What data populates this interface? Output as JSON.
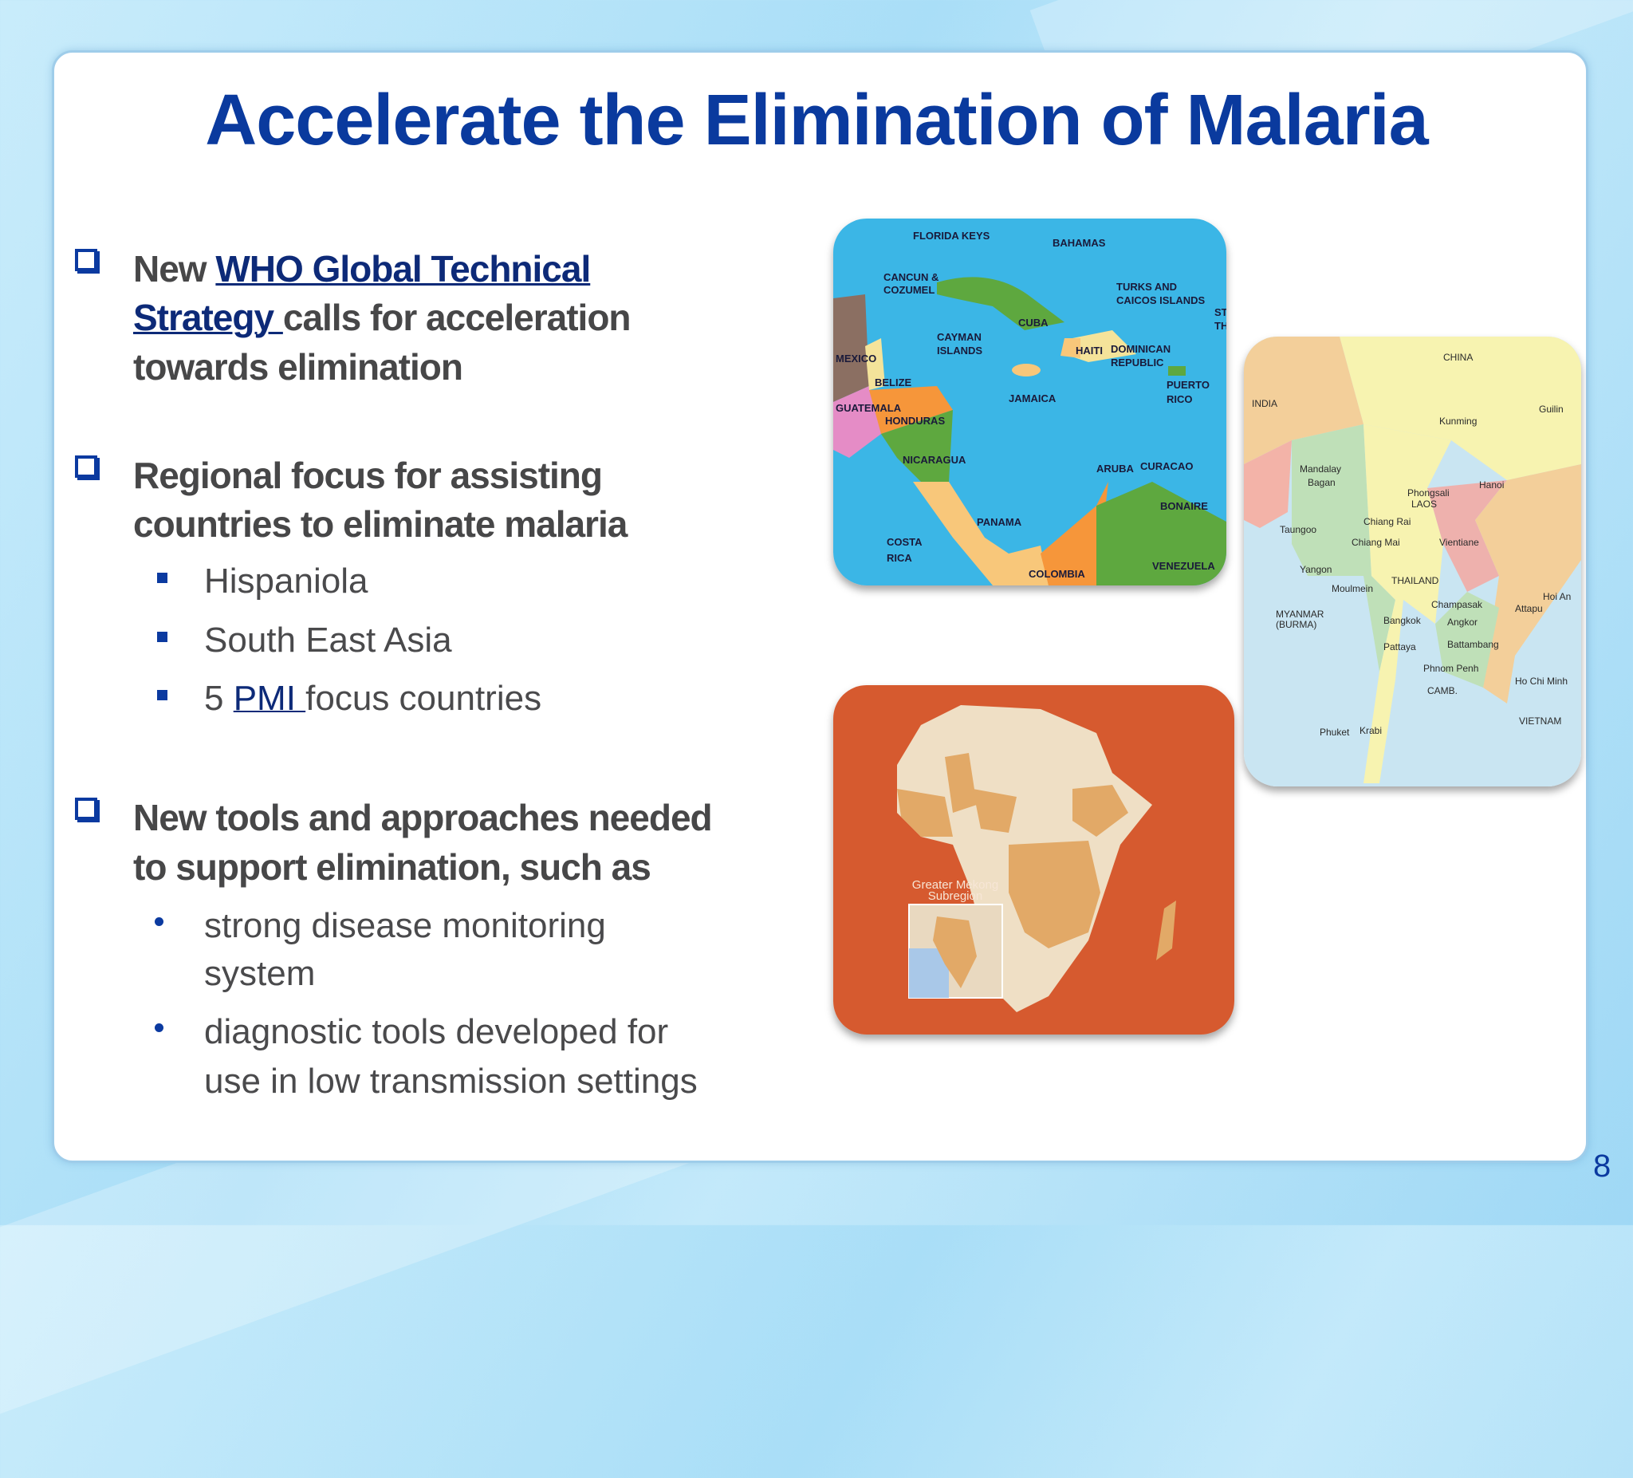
{
  "slide": {
    "title": "Accelerate the Elimination of Malaria",
    "page_number": "8",
    "accent_color": "#0a3a9e"
  },
  "bullets": [
    {
      "lines": [
        {
          "pre": "New ",
          "link": "WHO Global Technical",
          "post": ""
        },
        {
          "pre": "",
          "link": "Strategy ",
          "post": "calls for acceleration"
        },
        {
          "pre": "towards elimination",
          "link": "",
          "post": ""
        }
      ]
    },
    {
      "lines": [
        "Regional focus for assisting",
        "countries to eliminate malaria"
      ],
      "sub": [
        {
          "pre": "Hispaniola",
          "link": "",
          "post": ""
        },
        {
          "pre": "South East Asia",
          "link": "",
          "post": ""
        },
        {
          "pre": "5 ",
          "link": "PMI ",
          "post": "focus countries"
        }
      ]
    },
    {
      "lines": [
        "New tools and approaches needed",
        "to support elimination, such as"
      ],
      "sub": [
        {
          "lines": [
            "strong disease monitoring",
            "system"
          ]
        },
        {
          "lines": [
            "diagnostic tools developed for",
            "use in low transmission settings"
          ]
        }
      ]
    }
  ],
  "maps": {
    "caribbean": {
      "labels": [
        "FLORIDA KEYS",
        "BAHAMAS",
        "CANCUN &",
        "COZUMEL",
        "TURKS AND",
        "CAICOS ISLANDS",
        "ST.",
        "TH",
        "CUBA",
        "CAYMAN",
        "ISLANDS",
        "MEXICO",
        "HAITI",
        "DOMINICAN",
        "REPUBLIC",
        "BELIZE",
        "JAMAICA",
        "PUERTO",
        "RICO",
        "GUATEMALA",
        "HONDURAS",
        "NICARAGUA",
        "ARUBA",
        "CURACAO",
        "BONAIRE",
        "PANAMA",
        "COSTA",
        "RICA",
        "COLOMBIA",
        "VENEZUELA"
      ]
    },
    "southeast_asia": {
      "labels": [
        "CHINA",
        "INDIA",
        "Guilin",
        "Kunming",
        "Mandalay",
        "Bagan",
        "Phongsali",
        "Hanoi",
        "LAOS",
        "Taungoo",
        "Chiang Rai",
        "Chiang Mai",
        "Vientiane",
        "Yangon",
        "Moulmein",
        "THAILAND",
        "Hoi An",
        "MYANMAR",
        "(BURMA)",
        "Champasak",
        "Attapu",
        "Bangkok",
        "Angkor",
        "Pattaya",
        "Battambang",
        "Phnom Penh",
        "Ho Chi Minh",
        "CAMB.",
        "VIETNAM",
        "Phuket",
        "Krabi"
      ]
    },
    "africa": {
      "inset_label": [
        "Greater Mekong",
        "Subregion"
      ],
      "background_color": "#d65a2f"
    }
  }
}
